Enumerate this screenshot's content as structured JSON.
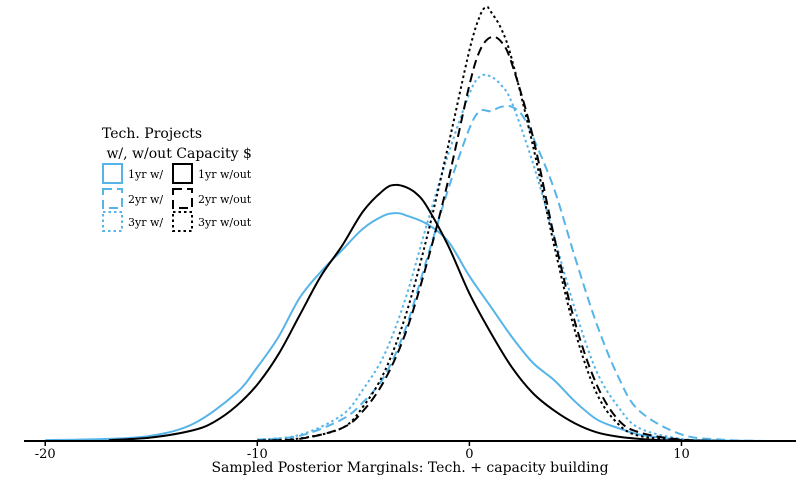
{
  "chart_data": {
    "type": "line",
    "title": "",
    "xlabel": "Sampled Posterior Marginals: Tech. + capacity building",
    "ylabel": "",
    "xlim": [
      -21,
      15.4
    ],
    "ylim": [
      0,
      1
    ],
    "x_ticks": [
      -20,
      -10,
      0,
      10
    ],
    "x_tick_labels": [
      "-20",
      "-10",
      "0",
      "10"
    ],
    "grid": false,
    "legend": {
      "title_line1": "Tech. Projects",
      "title_line2": " w/, w/out Capacity $",
      "placement": "left",
      "columns": [
        [
          "1yr w/",
          "2yr w/",
          "3yr w/"
        ],
        [
          "1yr w/out",
          "2yr w/out",
          "3yr w/out"
        ]
      ]
    },
    "colors": {
      "with": "#56B4E9",
      "without": "#000000"
    },
    "series": [
      {
        "name": "1yr w/",
        "color": "#56B4E9",
        "dash": "solid",
        "x": [
          -20,
          -17,
          -15,
          -13,
          -11,
          -10,
          -9,
          -8,
          -7,
          -6,
          -5,
          -4,
          -3.4,
          -3,
          -2,
          -1,
          0,
          1,
          2,
          3,
          4,
          5,
          6,
          7,
          8,
          9,
          10,
          12,
          14
        ],
        "y": [
          0.002,
          0.005,
          0.012,
          0.04,
          0.11,
          0.17,
          0.24,
          0.33,
          0.39,
          0.44,
          0.49,
          0.52,
          0.525,
          0.52,
          0.5,
          0.46,
          0.38,
          0.31,
          0.24,
          0.18,
          0.14,
          0.09,
          0.05,
          0.03,
          0.015,
          0.008,
          0.003,
          0.001,
          0.0
        ]
      },
      {
        "name": "2yr w/",
        "color": "#56B4E9",
        "dash": "dashed",
        "x": [
          -10,
          -8,
          -6,
          -5,
          -4,
          -3,
          -2,
          -1,
          0,
          0.5,
          1,
          1.5,
          2,
          2.5,
          3,
          4,
          5,
          6,
          7,
          8,
          10,
          12,
          14
        ],
        "y": [
          0.003,
          0.012,
          0.05,
          0.09,
          0.15,
          0.26,
          0.42,
          0.58,
          0.72,
          0.76,
          0.76,
          0.77,
          0.77,
          0.75,
          0.7,
          0.58,
          0.42,
          0.27,
          0.15,
          0.07,
          0.015,
          0.003,
          0.0
        ]
      },
      {
        "name": "3yr w/",
        "color": "#56B4E9",
        "dash": "dotted",
        "x": [
          -10,
          -8,
          -6,
          -5,
          -4,
          -3,
          -2,
          -1,
          0,
          0.5,
          1,
          1.5,
          2,
          3,
          4,
          5,
          6,
          7,
          8,
          10,
          12
        ],
        "y": [
          0.003,
          0.014,
          0.06,
          0.12,
          0.2,
          0.33,
          0.5,
          0.66,
          0.8,
          0.84,
          0.84,
          0.82,
          0.78,
          0.64,
          0.47,
          0.3,
          0.16,
          0.08,
          0.03,
          0.005,
          0.001
        ]
      },
      {
        "name": "1yr w/out",
        "color": "#000000",
        "dash": "solid",
        "x": [
          -17,
          -15,
          -13,
          -12,
          -11,
          -10,
          -9,
          -8,
          -7,
          -6,
          -5,
          -4,
          -3.5,
          -3,
          -2.5,
          -2,
          -1,
          0,
          1,
          2,
          3,
          4,
          5,
          6,
          7,
          8,
          9,
          10,
          12
        ],
        "y": [
          0.002,
          0.008,
          0.025,
          0.045,
          0.08,
          0.13,
          0.2,
          0.29,
          0.38,
          0.45,
          0.53,
          0.58,
          0.59,
          0.585,
          0.57,
          0.54,
          0.45,
          0.34,
          0.25,
          0.17,
          0.11,
          0.07,
          0.04,
          0.02,
          0.01,
          0.005,
          0.002,
          0.001,
          0.0
        ]
      },
      {
        "name": "2yr w/out",
        "color": "#000000",
        "dash": "dashed",
        "x": [
          -10,
          -8,
          -6,
          -5,
          -4,
          -3,
          -2,
          -1,
          0,
          0.5,
          1,
          1.5,
          2,
          3,
          4,
          5,
          6,
          7,
          8,
          10,
          12
        ],
        "y": [
          0.001,
          0.005,
          0.03,
          0.07,
          0.14,
          0.25,
          0.41,
          0.6,
          0.82,
          0.9,
          0.93,
          0.92,
          0.87,
          0.7,
          0.47,
          0.27,
          0.13,
          0.05,
          0.02,
          0.003,
          0.0
        ]
      },
      {
        "name": "3yr w/out",
        "color": "#000000",
        "dash": "dotted",
        "x": [
          -10,
          -8,
          -6,
          -5,
          -4,
          -3,
          -2,
          -1,
          0,
          0.5,
          0.8,
          1,
          1.5,
          2,
          3,
          4,
          5,
          6,
          7,
          8,
          10,
          12
        ],
        "y": [
          0.001,
          0.006,
          0.03,
          0.08,
          0.16,
          0.29,
          0.47,
          0.68,
          0.9,
          0.98,
          1.0,
          0.99,
          0.95,
          0.88,
          0.68,
          0.45,
          0.25,
          0.11,
          0.04,
          0.012,
          0.002,
          0.0
        ]
      }
    ]
  }
}
